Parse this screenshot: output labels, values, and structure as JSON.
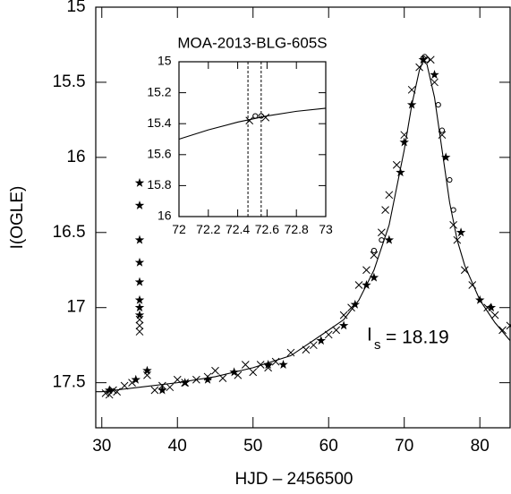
{
  "chart_data": [
    {
      "type": "scatter",
      "xlabel": "HJD – 2456500",
      "ylabel": "I(OGLE)",
      "xlim": [
        29.2,
        84
      ],
      "ylim": [
        17.8,
        15
      ],
      "y_inverted": true,
      "xticks": [
        30,
        40,
        50,
        60,
        70,
        80
      ],
      "yticks": [
        15,
        15.5,
        16,
        16.5,
        17,
        17.5
      ],
      "annotation": {
        "text": "I",
        "subscript": "s",
        "rest": "= 18.19"
      },
      "series": [
        {
          "marker": "line",
          "color": "#000000",
          "x": [
            29.2,
            30,
            35,
            40,
            45,
            50,
            55,
            60,
            62,
            64,
            66,
            68,
            69,
            70,
            71,
            72,
            72.5,
            73,
            74,
            75,
            76,
            77,
            78,
            80,
            82,
            84
          ],
          "values": [
            17.56,
            17.56,
            17.53,
            17.5,
            17.46,
            17.4,
            17.32,
            17.15,
            17.08,
            16.95,
            16.75,
            16.45,
            16.2,
            15.95,
            15.65,
            15.42,
            15.36,
            15.38,
            15.6,
            15.95,
            16.3,
            16.55,
            16.72,
            16.95,
            17.1,
            17.22
          ]
        },
        {
          "marker": "cross",
          "color": "#000000",
          "x": [
            30.5,
            31,
            31.5,
            32,
            33,
            34,
            35,
            35,
            35,
            36,
            37,
            38,
            39,
            40,
            41,
            42.5,
            44,
            45,
            46,
            48,
            49,
            50,
            51,
            52,
            53,
            55,
            57,
            58,
            60,
            61,
            62,
            63,
            64,
            65,
            66,
            67,
            67.5,
            68,
            69,
            70,
            71,
            72,
            73.5,
            74,
            75,
            76.5,
            77,
            78,
            79,
            81,
            82,
            83,
            84
          ],
          "values": [
            17.57,
            17.58,
            17.55,
            17.56,
            17.52,
            17.5,
            17.08,
            17.12,
            17.16,
            17.45,
            17.55,
            17.52,
            17.53,
            17.48,
            17.5,
            17.48,
            17.46,
            17.42,
            17.47,
            17.45,
            17.38,
            17.43,
            17.38,
            17.4,
            17.36,
            17.3,
            17.28,
            17.25,
            17.18,
            17.15,
            17.05,
            17.0,
            16.85,
            16.75,
            16.65,
            16.5,
            16.35,
            16.25,
            16.05,
            15.85,
            15.55,
            15.4,
            15.35,
            15.5,
            15.85,
            16.45,
            16.55,
            16.75,
            16.85,
            17.0,
            17.05,
            17.15,
            17.12
          ]
        },
        {
          "marker": "star",
          "color": "#000000",
          "x": [
            31,
            34.5,
            35,
            35,
            35,
            35,
            35,
            35,
            35,
            35,
            36,
            38,
            41,
            44,
            47.5,
            52,
            54,
            59,
            62,
            63.5,
            65,
            66,
            68,
            69.5,
            70,
            71,
            72.5,
            74,
            75.5,
            77.5,
            80,
            81.5
          ],
          "values": [
            17.55,
            17.48,
            16.17,
            16.32,
            16.55,
            16.7,
            16.83,
            16.95,
            17.0,
            17.05,
            17.42,
            17.55,
            17.5,
            17.48,
            17.43,
            17.38,
            17.38,
            17.22,
            17.12,
            16.98,
            16.85,
            16.8,
            16.55,
            16.1,
            15.9,
            15.65,
            15.35,
            15.45,
            16.0,
            16.5,
            16.95,
            17.0
          ]
        },
        {
          "marker": "circle",
          "color": "#000000",
          "x": [
            66,
            67,
            72.5,
            72.7,
            73,
            74.5,
            75,
            76,
            76.5
          ],
          "values": [
            16.62,
            16.55,
            15.34,
            15.33,
            15.35,
            15.65,
            15.82,
            16.15,
            16.35
          ]
        }
      ]
    },
    {
      "type": "scatter",
      "title": "MOA-2013-BLG-605S",
      "xlim": [
        72,
        73
      ],
      "ylim": [
        16,
        15
      ],
      "y_inverted": true,
      "xticks": [
        72,
        72.2,
        72.4,
        72.6,
        72.8,
        73
      ],
      "yticks": [
        15,
        15.2,
        15.4,
        15.6,
        15.8,
        16
      ],
      "vlines": [
        72.47,
        72.56
      ],
      "series": [
        {
          "marker": "line",
          "color": "#000000",
          "x": [
            72,
            72.2,
            72.4,
            72.6,
            72.8,
            73
          ],
          "values": [
            15.5,
            15.44,
            15.39,
            15.35,
            15.32,
            15.3
          ]
        },
        {
          "marker": "cross",
          "color": "#000000",
          "x": [
            72.48,
            72.59
          ],
          "values": [
            15.38,
            15.36
          ]
        },
        {
          "marker": "circle",
          "color": "#000000",
          "x": [
            72.52,
            72.56
          ],
          "values": [
            15.35,
            15.35
          ]
        }
      ]
    }
  ]
}
